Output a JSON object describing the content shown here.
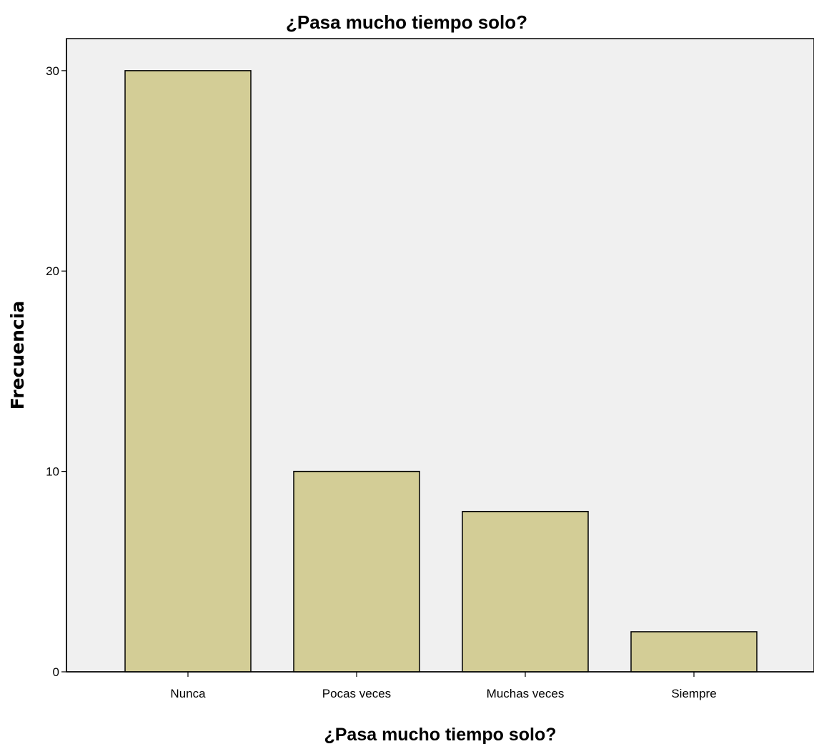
{
  "chart_data": {
    "type": "bar",
    "title": "¿Pasa mucho tiempo solo?",
    "xlabel": "¿Pasa mucho tiempo solo?",
    "ylabel": "Frecuencia",
    "categories": [
      "Nunca",
      "Pocas veces",
      "Muchas veces",
      "Siempre"
    ],
    "values": [
      30,
      10,
      8,
      2
    ],
    "ylim": [
      0,
      31.6
    ],
    "yticks": [
      "0",
      "10",
      "20",
      "30"
    ],
    "grid": false,
    "legend": "none",
    "colors": {
      "bar_fill": "#d3cd96",
      "bar_stroke": "#000000",
      "plot_background": "#f0f0f0",
      "axis": "#000000"
    }
  }
}
